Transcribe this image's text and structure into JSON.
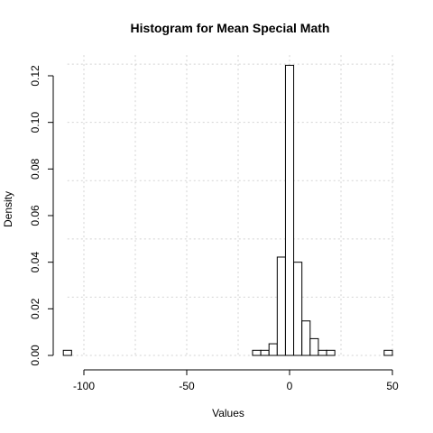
{
  "chart_data": {
    "type": "bar",
    "title": "Histogram for Mean Special Math",
    "xlabel": "Values",
    "ylabel": "Density",
    "xlim": [
      -108,
      52
    ],
    "ylim": [
      0,
      0.125
    ],
    "x_ticks": [
      -100,
      -50,
      0,
      50
    ],
    "y_ticks": [
      0.0,
      0.02,
      0.04,
      0.06,
      0.08,
      0.1,
      0.12
    ],
    "x_grid": [
      -100,
      -75,
      -50,
      -25,
      0,
      25,
      50
    ],
    "y_grid": [
      0.0,
      0.025,
      0.05,
      0.075,
      0.1,
      0.125
    ],
    "grid": true,
    "bins": [
      {
        "x0": -110,
        "x1": -106,
        "density": 0.0022
      },
      {
        "x0": -18,
        "x1": -14,
        "density": 0.0022
      },
      {
        "x0": -14,
        "x1": -10,
        "density": 0.0022
      },
      {
        "x0": -10,
        "x1": -6,
        "density": 0.005
      },
      {
        "x0": -6,
        "x1": -2,
        "density": 0.0422
      },
      {
        "x0": -2,
        "x1": 2,
        "density": 0.1245
      },
      {
        "x0": 2,
        "x1": 6,
        "density": 0.04
      },
      {
        "x0": 6,
        "x1": 10,
        "density": 0.0148
      },
      {
        "x0": 10,
        "x1": 14,
        "density": 0.0072
      },
      {
        "x0": 14,
        "x1": 18,
        "density": 0.0022
      },
      {
        "x0": 18,
        "x1": 22,
        "density": 0.0022
      },
      {
        "x0": 46,
        "x1": 50,
        "density": 0.0022
      }
    ]
  }
}
